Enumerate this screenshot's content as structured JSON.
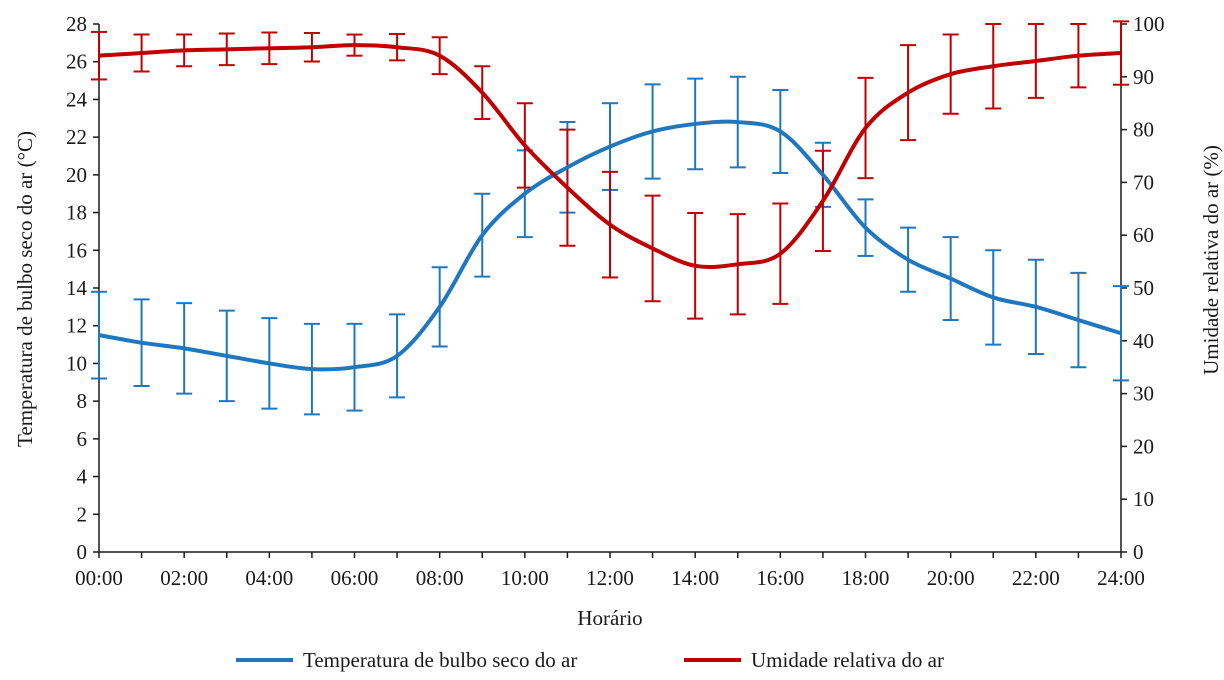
{
  "chart_data": {
    "type": "line",
    "title": "",
    "xlabel": "Horário",
    "ylabel_left": "Temperatura de bulbo seco do ar (°C)",
    "ylabel_right": "Umidade relativa do ar (%)",
    "x": [
      "00:00",
      "01:00",
      "02:00",
      "03:00",
      "04:00",
      "05:00",
      "06:00",
      "07:00",
      "08:00",
      "09:00",
      "10:00",
      "11:00",
      "12:00",
      "13:00",
      "14:00",
      "15:00",
      "16:00",
      "17:00",
      "18:00",
      "19:00",
      "20:00",
      "21:00",
      "22:00",
      "23:00",
      "24:00"
    ],
    "x_tick_labels": [
      "00:00",
      "02:00",
      "04:00",
      "06:00",
      "08:00",
      "10:00",
      "12:00",
      "14:00",
      "16:00",
      "18:00",
      "20:00",
      "22:00",
      "24:00"
    ],
    "ylim_left": [
      0,
      28
    ],
    "y_ticks_left": [
      0,
      2,
      4,
      6,
      8,
      10,
      12,
      14,
      16,
      18,
      20,
      22,
      24,
      26,
      28
    ],
    "ylim_right": [
      0,
      100
    ],
    "y_ticks_right": [
      0,
      10,
      20,
      30,
      40,
      50,
      60,
      70,
      80,
      90,
      100
    ],
    "grid": false,
    "legend_position": "bottom",
    "series": [
      {
        "name": "Temperatura de bulbo seco do ar",
        "axis": "left",
        "color": "#1f77c0",
        "values": [
          11.5,
          11.1,
          10.8,
          10.4,
          10.0,
          9.7,
          9.8,
          10.4,
          13.0,
          16.8,
          19.0,
          20.4,
          21.5,
          22.3,
          22.7,
          22.8,
          22.3,
          20.0,
          17.2,
          15.5,
          14.5,
          13.5,
          13.0,
          12.3,
          11.6
        ],
        "error": [
          2.3,
          2.3,
          2.4,
          2.4,
          2.4,
          2.4,
          2.3,
          2.2,
          2.1,
          2.2,
          2.3,
          2.4,
          2.3,
          2.5,
          2.4,
          2.4,
          2.2,
          1.7,
          1.5,
          1.7,
          2.2,
          2.5,
          2.5,
          2.5,
          2.5
        ]
      },
      {
        "name": "Umidade relativa do ar",
        "axis": "right",
        "color": "#c00000",
        "values": [
          94,
          94.5,
          95,
          95.2,
          95.4,
          95.6,
          96,
          95.6,
          94,
          87,
          77,
          69,
          62,
          57.5,
          54.2,
          54.5,
          56.5,
          66.5,
          80.3,
          87,
          90.5,
          92,
          93,
          94,
          94.5
        ],
        "error": [
          4.5,
          3.5,
          3,
          3,
          3,
          2.7,
          2,
          2.5,
          3.5,
          5,
          8,
          11,
          10,
          10,
          10,
          9.5,
          9.5,
          9.5,
          9.5,
          9,
          7.5,
          8,
          7,
          6,
          6
        ]
      }
    ]
  }
}
